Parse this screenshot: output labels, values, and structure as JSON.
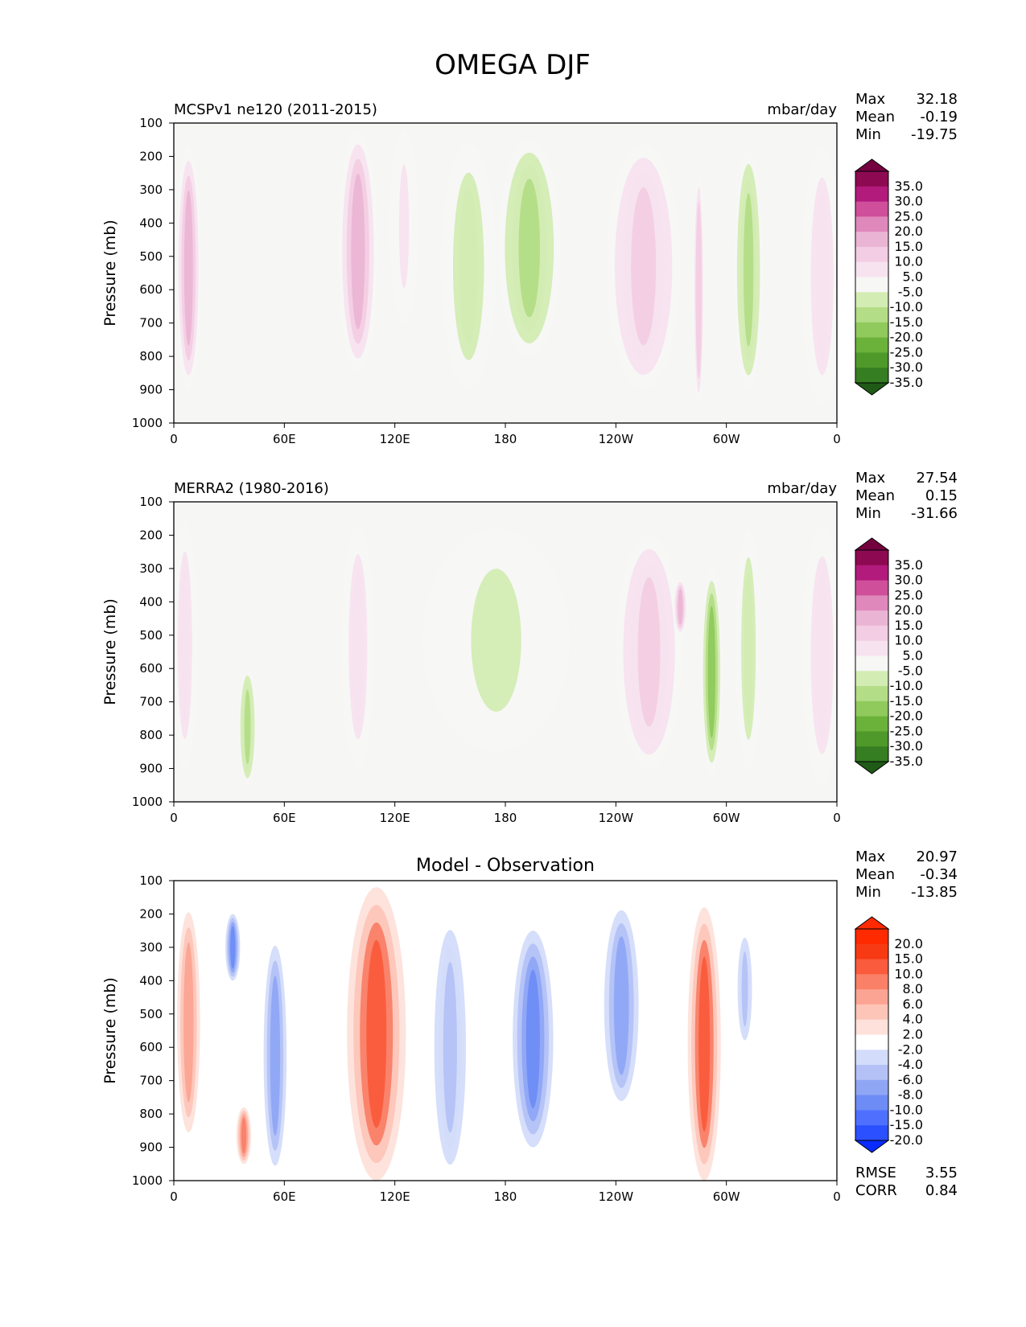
{
  "figure": {
    "title": "OMEGA DJF"
  },
  "colors": {
    "omega_levels": [
      "-35.0",
      "-30.0",
      "-25.0",
      "-20.0",
      "-15.0",
      "-10.0",
      "-5.0",
      "5.0",
      "10.0",
      "15.0",
      "20.0",
      "25.0",
      "30.0",
      "35.0"
    ],
    "omega_colors": [
      "#1f5a17",
      "#357e22",
      "#4f992a",
      "#6bb23b",
      "#90c95c",
      "#b3dd86",
      "#d3ecb3",
      "#f7f7f5",
      "#f7e3ef",
      "#f3cde3",
      "#eab5d4",
      "#df88bb",
      "#cf4f9b",
      "#b21a7c",
      "#8d0a52",
      "#74023f"
    ],
    "diff_levels": [
      "-20.0",
      "-15.0",
      "-10.0",
      "-8.0",
      "-6.0",
      "-4.0",
      "-2.0",
      "2.0",
      "4.0",
      "6.0",
      "8.0",
      "10.0",
      "15.0",
      "20.0"
    ],
    "diff_colors": [
      "#0a2bff",
      "#2b50ff",
      "#4f70ff",
      "#6e8cf5",
      "#8fa6f5",
      "#b3c1f7",
      "#d3dcfa",
      "#ffffff",
      "#fde1da",
      "#fdc5b8",
      "#fca493",
      "#fa8067",
      "#fa5b3c",
      "#f73a14",
      "#ff2a00",
      "#ff2a00"
    ]
  },
  "panels": [
    {
      "title_left": "MCSPv1 ne120 (2011-2015)",
      "title_center": "",
      "title_right": "mbar/day",
      "ylabel": "Pressure (mb)",
      "stats": {
        "max_label": "Max",
        "max": "32.18",
        "mean_label": "Mean",
        "mean": "-0.19",
        "min_label": "Min",
        "min": "-19.75"
      },
      "colorbar_labels": [
        "35.0",
        "30.0",
        "25.0",
        "20.0",
        "15.0",
        "10.0",
        "5.0",
        "-5.0",
        "-10.0",
        "-15.0",
        "-20.0",
        "-25.0",
        "-30.0",
        "-35.0"
      ],
      "colormap": "omega"
    },
    {
      "title_left": "MERRA2 (1980-2016)",
      "title_center": "",
      "title_right": "mbar/day",
      "ylabel": "Pressure (mb)",
      "stats": {
        "max_label": "Max",
        "max": "27.54",
        "mean_label": "Mean",
        "mean": "0.15",
        "min_label": "Min",
        "min": "-31.66"
      },
      "colorbar_labels": [
        "35.0",
        "30.0",
        "25.0",
        "20.0",
        "15.0",
        "10.0",
        "5.0",
        "-5.0",
        "-10.0",
        "-15.0",
        "-20.0",
        "-25.0",
        "-30.0",
        "-35.0"
      ],
      "colormap": "omega"
    },
    {
      "title_left": "",
      "title_center": "Model - Observation",
      "title_right": "",
      "ylabel": "Pressure (mb)",
      "stats": {
        "max_label": "Max",
        "max": "20.97",
        "mean_label": "Mean",
        "mean": "-0.34",
        "min_label": "Min",
        "min": "-13.85"
      },
      "extra_stats": {
        "rmse_label": "RMSE",
        "rmse": "3.55",
        "corr_label": "CORR",
        "corr": "0.84"
      },
      "colorbar_labels": [
        "20.0",
        "15.0",
        "10.0",
        "8.0",
        "6.0",
        "4.0",
        "2.0",
        "-2.0",
        "-4.0",
        "-6.0",
        "-8.0",
        "-10.0",
        "-15.0",
        "-20.0"
      ],
      "colormap": "diff"
    }
  ],
  "chart_data": [
    {
      "type": "heatmap",
      "title": "MCSPv1 ne120 (2011-2015)",
      "units": "mbar/day",
      "ylabel": "Pressure (mb)",
      "x_ticks": [
        "0",
        "60E",
        "120E",
        "180",
        "120W",
        "60W",
        "0"
      ],
      "y_ticks": [
        "100",
        "200",
        "300",
        "400",
        "500",
        "600",
        "700",
        "800",
        "900",
        "1000"
      ],
      "xlim": [
        0,
        360
      ],
      "ylim": [
        1000,
        100
      ],
      "features": [
        {
          "lon": 8,
          "p_top": 170,
          "p_bot": 900,
          "value": 20,
          "width": 14
        },
        {
          "lon": 100,
          "p_top": 120,
          "p_bot": 850,
          "value": 18,
          "width": 22
        },
        {
          "lon": 125,
          "p_top": 120,
          "p_bot": 700,
          "value": 6,
          "width": 16
        },
        {
          "lon": 160,
          "p_top": 160,
          "p_bot": 900,
          "value": -8,
          "width": 30
        },
        {
          "lon": 193,
          "p_top": 150,
          "p_bot": 800,
          "value": -12,
          "width": 34
        },
        {
          "lon": 255,
          "p_top": 160,
          "p_bot": 900,
          "value": 12,
          "width": 40
        },
        {
          "lon": 285,
          "p_top": 250,
          "p_bot": 950,
          "value": 15,
          "width": 6
        },
        {
          "lon": 312,
          "p_top": 180,
          "p_bot": 900,
          "value": -10,
          "width": 16
        },
        {
          "lon": 352,
          "p_top": 170,
          "p_bot": 950,
          "value": 10,
          "width": 22
        }
      ],
      "stats": {
        "max": 32.18,
        "mean": -0.19,
        "min": -19.75
      }
    },
    {
      "type": "heatmap",
      "title": "MERRA2 (1980-2016)",
      "units": "mbar/day",
      "ylabel": "Pressure (mb)",
      "x_ticks": [
        "0",
        "60E",
        "120E",
        "180",
        "120W",
        "60W",
        "0"
      ],
      "y_ticks": [
        "100",
        "200",
        "300",
        "400",
        "500",
        "600",
        "700",
        "800",
        "900",
        "1000"
      ],
      "xlim": [
        0,
        360
      ],
      "ylim": [
        1000,
        100
      ],
      "features": [
        {
          "lon": 6,
          "p_top": 160,
          "p_bot": 900,
          "value": 10,
          "width": 14
        },
        {
          "lon": 100,
          "p_top": 170,
          "p_bot": 900,
          "value": 10,
          "width": 18
        },
        {
          "lon": 40,
          "p_top": 600,
          "p_bot": 950,
          "value": -10,
          "width": 10
        },
        {
          "lon": 175,
          "p_top": 180,
          "p_bot": 850,
          "value": -6,
          "width": 80
        },
        {
          "lon": 258,
          "p_top": 200,
          "p_bot": 900,
          "value": 12,
          "width": 36
        },
        {
          "lon": 275,
          "p_top": 330,
          "p_bot": 500,
          "value": 18,
          "width": 8
        },
        {
          "lon": 292,
          "p_top": 300,
          "p_bot": 920,
          "value": -15,
          "width": 12
        },
        {
          "lon": 312,
          "p_top": 180,
          "p_bot": 900,
          "value": -8,
          "width": 14
        },
        {
          "lon": 352,
          "p_top": 170,
          "p_bot": 950,
          "value": 8,
          "width": 22
        }
      ],
      "stats": {
        "max": 27.54,
        "mean": 0.15,
        "min": -31.66
      }
    },
    {
      "type": "heatmap",
      "title": "Model - Observation",
      "ylabel": "Pressure (mb)",
      "x_ticks": [
        "0",
        "60E",
        "120E",
        "180",
        "120W",
        "60W",
        "0"
      ],
      "y_ticks": [
        "100",
        "200",
        "300",
        "400",
        "500",
        "600",
        "700",
        "800",
        "900",
        "1000"
      ],
      "xlim": [
        0,
        360
      ],
      "ylim": [
        1000,
        100
      ],
      "features": [
        {
          "lon": 8,
          "p_top": 150,
          "p_bot": 900,
          "value": 8,
          "width": 16
        },
        {
          "lon": 32,
          "p_top": 200,
          "p_bot": 400,
          "value": -8,
          "width": 8
        },
        {
          "lon": 38,
          "p_top": 780,
          "p_bot": 950,
          "value": 10,
          "width": 8
        },
        {
          "lon": 55,
          "p_top": 250,
          "p_bot": 1000,
          "value": -6,
          "width": 16
        },
        {
          "lon": 110,
          "p_top": 120,
          "p_bot": 1000,
          "value": 12,
          "width": 32
        },
        {
          "lon": 150,
          "p_top": 200,
          "p_bot": 1000,
          "value": -5,
          "width": 22
        },
        {
          "lon": 195,
          "p_top": 250,
          "p_bot": 900,
          "value": -8,
          "width": 22
        },
        {
          "lon": 243,
          "p_top": 150,
          "p_bot": 800,
          "value": -6,
          "width": 24
        },
        {
          "lon": 288,
          "p_top": 180,
          "p_bot": 1000,
          "value": 12,
          "width": 18
        },
        {
          "lon": 310,
          "p_top": 250,
          "p_bot": 600,
          "value": -4,
          "width": 10
        }
      ],
      "stats": {
        "max": 20.97,
        "mean": -0.34,
        "min": -13.85,
        "rmse": 3.55,
        "corr": 0.84
      }
    }
  ]
}
